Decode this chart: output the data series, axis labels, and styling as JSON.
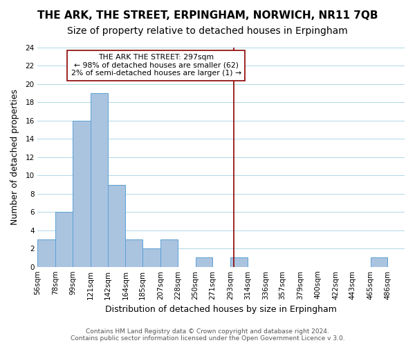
{
  "title": "THE ARK, THE STREET, ERPINGHAM, NORWICH, NR11 7QB",
  "subtitle": "Size of property relative to detached houses in Erpingham",
  "xlabel": "Distribution of detached houses by size in Erpingham",
  "ylabel": "Number of detached properties",
  "bin_labels": [
    "56sqm",
    "78sqm",
    "99sqm",
    "121sqm",
    "142sqm",
    "164sqm",
    "185sqm",
    "207sqm",
    "228sqm",
    "250sqm",
    "271sqm",
    "293sqm",
    "314sqm",
    "336sqm",
    "357sqm",
    "379sqm",
    "400sqm",
    "422sqm",
    "443sqm",
    "465sqm",
    "486sqm"
  ],
  "bin_edges": [
    56,
    78,
    99,
    121,
    142,
    164,
    185,
    207,
    228,
    250,
    271,
    293,
    314,
    336,
    357,
    379,
    400,
    422,
    443,
    465,
    486,
    507
  ],
  "counts": [
    3,
    6,
    16,
    19,
    9,
    3,
    2,
    3,
    0,
    1,
    0,
    1,
    0,
    0,
    0,
    0,
    0,
    0,
    0,
    1,
    0
  ],
  "bar_color": "#aac4e0",
  "bar_edge_color": "#5a9fd4",
  "property_value": 297,
  "marker_line_color": "#8b0000",
  "annotation_title": "THE ARK THE STREET: 297sqm",
  "annotation_line1": "← 98% of detached houses are smaller (62)",
  "annotation_line2": "2% of semi-detached houses are larger (1) →",
  "annotation_box_edge": "#8b0000",
  "ylim": [
    0,
    24
  ],
  "yticks": [
    0,
    2,
    4,
    6,
    8,
    10,
    12,
    14,
    16,
    18,
    20,
    22,
    24
  ],
  "footer_line1": "Contains HM Land Registry data © Crown copyright and database right 2024.",
  "footer_line2": "Contains public sector information licensed under the Open Government Licence v 3.0.",
  "title_fontsize": 11,
  "subtitle_fontsize": 10,
  "axis_label_fontsize": 9,
  "tick_fontsize": 7.5,
  "footer_fontsize": 6.5
}
